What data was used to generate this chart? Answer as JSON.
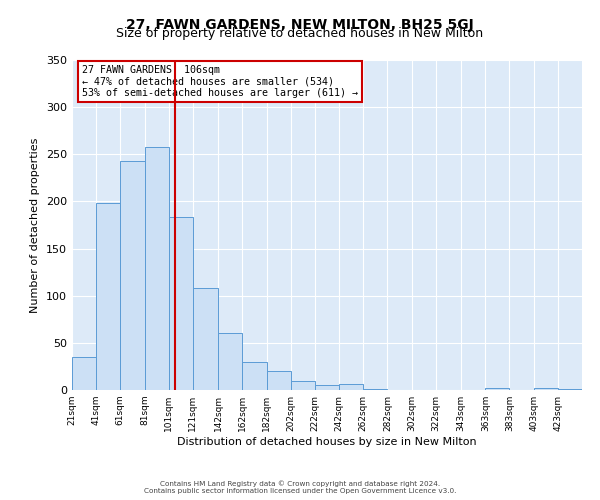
{
  "title": "27, FAWN GARDENS, NEW MILTON, BH25 5GJ",
  "subtitle": "Size of property relative to detached houses in New Milton",
  "xlabel": "Distribution of detached houses by size in New Milton",
  "ylabel": "Number of detached properties",
  "bar_labels": [
    "21sqm",
    "41sqm",
    "61sqm",
    "81sqm",
    "101sqm",
    "121sqm",
    "142sqm",
    "162sqm",
    "182sqm",
    "202sqm",
    "222sqm",
    "242sqm",
    "262sqm",
    "282sqm",
    "302sqm",
    "322sqm",
    "343sqm",
    "363sqm",
    "383sqm",
    "403sqm",
    "423sqm"
  ],
  "bar_values": [
    35,
    198,
    243,
    258,
    184,
    108,
    60,
    30,
    20,
    10,
    5,
    6,
    1,
    0,
    0,
    0,
    0,
    2,
    0,
    2,
    1
  ],
  "bar_color": "#cce0f5",
  "bar_edge_color": "#5b9bd5",
  "vline_x": 106,
  "vline_color": "#cc0000",
  "annotation_title": "27 FAWN GARDENS: 106sqm",
  "annotation_line1": "← 47% of detached houses are smaller (534)",
  "annotation_line2": "53% of semi-detached houses are larger (611) →",
  "annotation_box_edge": "#cc0000",
  "ylim": [
    0,
    350
  ],
  "yticks": [
    0,
    50,
    100,
    150,
    200,
    250,
    300,
    350
  ],
  "footer1": "Contains HM Land Registry data © Crown copyright and database right 2024.",
  "footer2": "Contains public sector information licensed under the Open Government Licence v3.0.",
  "bin_edges": [
    21,
    41,
    61,
    81,
    101,
    121,
    142,
    162,
    182,
    202,
    222,
    242,
    262,
    282,
    302,
    322,
    343,
    363,
    383,
    403,
    423,
    443
  ]
}
